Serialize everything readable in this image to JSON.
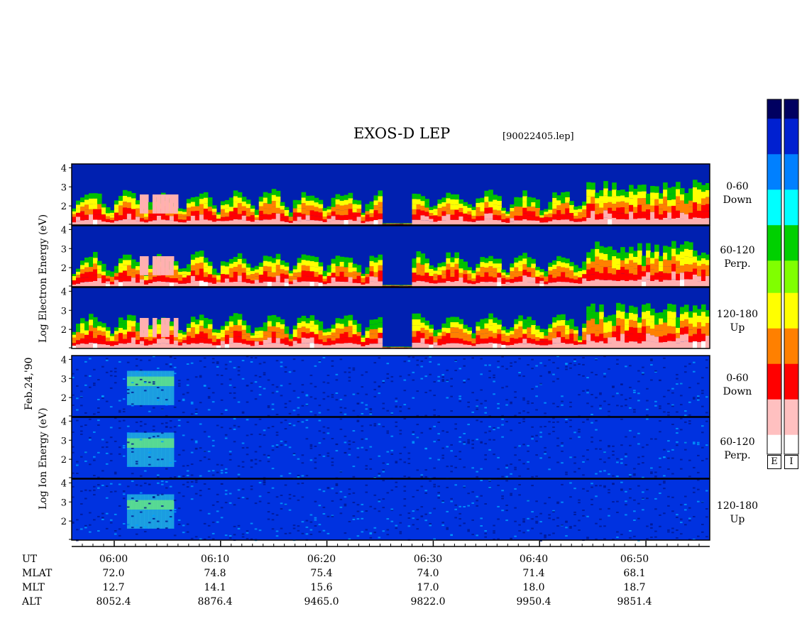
{
  "header": {
    "title": "EXOS-D LEP",
    "file": "[90022405.lep]"
  },
  "left_labels": {
    "electron": "Log  Electron  Energy  (eV)",
    "ion": "Log  Ion  Energy  (eV)",
    "date": "Feb.24,'90"
  },
  "panels": [
    {
      "range": "0-60",
      "dir": "Down",
      "species": "electron"
    },
    {
      "range": "60-120",
      "dir": "Perp.",
      "species": "electron"
    },
    {
      "range": "120-180",
      "dir": "Up",
      "species": "electron"
    },
    {
      "range": "0-60",
      "dir": "Down",
      "species": "ion"
    },
    {
      "range": "60-120",
      "dir": "Perp.",
      "species": "ion"
    },
    {
      "range": "120-180",
      "dir": "Up",
      "species": "ion"
    }
  ],
  "colorbars": {
    "electron_label": "E",
    "ion_label": "I"
  },
  "chart_data": {
    "type": "heatmap",
    "title": "EXOS-D LEP",
    "ylabel_electron": "Log  Electron  Energy  (eV)",
    "ylabel_ion": "Log  Ion  Energy  (eV)",
    "y_ticks": [
      "4",
      "3",
      "2"
    ],
    "ylim": [
      1,
      4.2
    ],
    "x_tick_labels": [
      "06:00",
      "06:10",
      "06:20",
      "06:30",
      "06:40",
      "06:50"
    ],
    "x_range": [
      "05:56",
      "06:56"
    ],
    "colormap": [
      "#ffffff",
      "#ffb0b0",
      "#ff0000",
      "#ff8000",
      "#ffff00",
      "#00c000",
      "#00ffff",
      "#0060ff",
      "#0000a0",
      "#000060"
    ]
  },
  "footer": {
    "rows": [
      {
        "name": "UT",
        "values": [
          "06:00",
          "06:10",
          "06:20",
          "06:30",
          "06:40",
          "06:50"
        ]
      },
      {
        "name": "MLAT",
        "values": [
          "72.0",
          "74.8",
          "75.4",
          "74.0",
          "71.4",
          "68.1"
        ]
      },
      {
        "name": "MLT",
        "values": [
          "12.7",
          "14.1",
          "15.6",
          "17.0",
          "18.0",
          "18.7"
        ]
      },
      {
        "name": "ALT",
        "values": [
          "8052.4",
          "8876.4",
          "9465.0",
          "9822.0",
          "9950.4",
          "9851.4"
        ]
      }
    ]
  }
}
